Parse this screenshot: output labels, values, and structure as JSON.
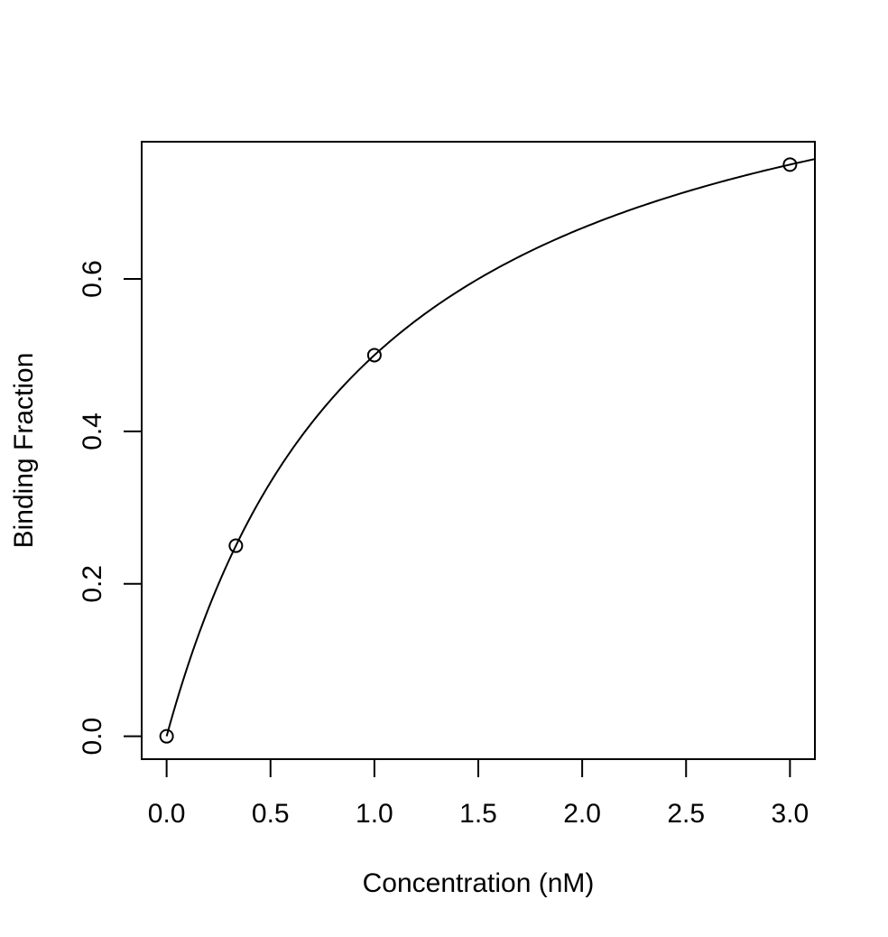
{
  "chart_data": {
    "type": "scatter",
    "title": "",
    "xlabel": "Concentration (nM)",
    "ylabel": "Binding Fraction",
    "xlim": [
      -0.12,
      3.12
    ],
    "ylim": [
      -0.03,
      0.78
    ],
    "x_ticks": [
      0.0,
      0.5,
      1.0,
      1.5,
      2.0,
      2.5,
      3.0
    ],
    "x_tick_labels": [
      "0.0",
      "0.5",
      "1.0",
      "1.5",
      "2.0",
      "2.5",
      "3.0"
    ],
    "y_ticks": [
      0.0,
      0.2,
      0.4,
      0.6
    ],
    "y_tick_labels": [
      "0.0",
      "0.2",
      "0.4",
      "0.6"
    ],
    "grid": false,
    "legend": "none",
    "series": [
      {
        "type": "scatter",
        "marker": "open-circle",
        "x": [
          0.0,
          0.3333,
          1.0,
          3.0
        ],
        "y": [
          0.0,
          0.25,
          0.5,
          0.75
        ]
      },
      {
        "type": "line",
        "function": "x / (1 + x)",
        "x_range": [
          0.0,
          3.12
        ]
      }
    ],
    "colors": {
      "line": "#000000",
      "marker": "#000000",
      "background": "#ffffff"
    }
  }
}
